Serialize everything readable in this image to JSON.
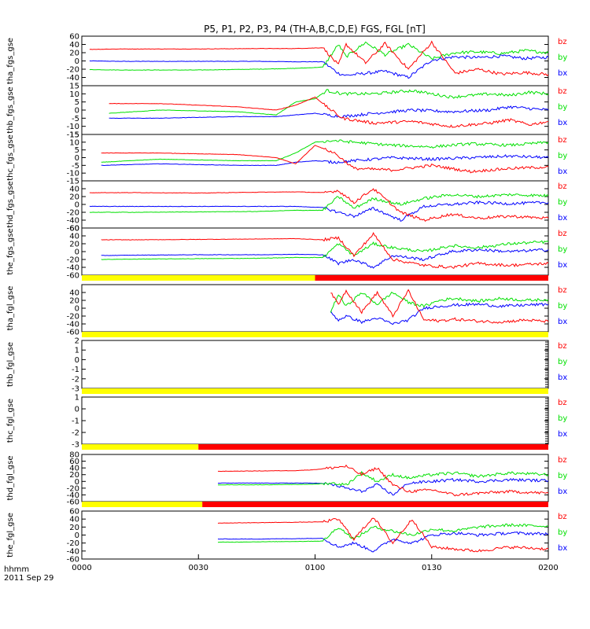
{
  "title": "P5, P1, P2, P3, P4 (TH-A,B,C,D,E) FGS, FGL [nT]",
  "colors": {
    "bx": "#0000ff",
    "by": "#00e000",
    "bz": "#ff0000",
    "flag_yellow": "#ffff00",
    "flag_red": "#ff0000",
    "axis": "#000000"
  },
  "bottom_label_line1": "hhmm",
  "bottom_label_line2": "2011 Sep 29",
  "chart_data": {
    "type": "line",
    "xlim": [
      "0000",
      "0200"
    ],
    "x_ticks": [
      "0000",
      "0030",
      "0100",
      "0130",
      "0200"
    ],
    "legend": [
      "bz",
      "by",
      "bx"
    ],
    "panels": [
      {
        "ylabel": "tha_fgs_gse",
        "ylim": [
          -60,
          60
        ],
        "ticks": [
          60,
          40,
          20,
          0,
          -20,
          -40
        ],
        "data_start_min": 2,
        "segments": [
          {
            "t": [
              2,
              10,
              30,
              45,
              55,
              62,
              66,
              68,
              73,
              78,
              84,
              90,
              96,
              102,
              108,
              114,
              120
            ],
            "bz": [
              28,
              29,
              29,
              30,
              30,
              32,
              -10,
              40,
              -5,
              42,
              -20,
              45,
              -30,
              -20,
              -32,
              -28,
              -33
            ],
            "by": [
              -21,
              -22,
              -22,
              -20,
              -18,
              -15,
              40,
              10,
              45,
              15,
              40,
              5,
              20,
              22,
              18,
              25,
              20
            ],
            "bx": [
              0,
              -1,
              -1,
              -1,
              -2,
              -2,
              -30,
              -35,
              -30,
              -25,
              -40,
              2,
              10,
              8,
              12,
              6,
              9
            ]
          }
        ]
      },
      {
        "ylabel": "thb_fgs_gse",
        "ylim": [
          -15,
          15
        ],
        "ticks": [
          15,
          10,
          5,
          0,
          -5,
          -10,
          -15
        ],
        "data_start_min": 7,
        "segments": [
          {
            "t": [
              7,
              20,
              40,
              50,
              55,
              60,
              63,
              67,
              75,
              85,
              95,
              105,
              110,
              115,
              120
            ],
            "bz": [
              4,
              4,
              2,
              0,
              3,
              8,
              2,
              -5,
              -8,
              -7,
              -10,
              -8,
              -6,
              -9,
              -7
            ],
            "by": [
              -2,
              0,
              -1,
              -3,
              5,
              7,
              12,
              10,
              10,
              12,
              8,
              10,
              9,
              11,
              10
            ],
            "bx": [
              -5,
              -5,
              -4,
              -4,
              -3,
              -2,
              -3,
              -4,
              -2,
              0,
              -1,
              0,
              2,
              1,
              0
            ]
          }
        ]
      },
      {
        "ylabel": "thc_fgs_gse",
        "ylim": [
          -15,
          15
        ],
        "ticks": [
          15,
          10,
          5,
          0,
          -5,
          -10,
          -15
        ],
        "data_start_min": 5,
        "segments": [
          {
            "t": [
              5,
              20,
              40,
              50,
              55,
              60,
              65,
              70,
              80,
              90,
              100,
              110,
              120
            ],
            "bz": [
              3,
              3,
              2,
              0,
              -4,
              8,
              3,
              -7,
              -8,
              -5,
              -9,
              -7,
              -6
            ],
            "by": [
              -3,
              -1,
              -2,
              -2,
              3,
              10,
              11,
              10,
              8,
              7,
              9,
              8,
              10
            ],
            "bx": [
              -5,
              -4,
              -5,
              -5,
              -3,
              -2,
              -3,
              -2,
              0,
              -1,
              0,
              1,
              0
            ]
          }
        ]
      },
      {
        "ylabel": "thd_fgs_gse",
        "ylim": [
          -60,
          60
        ],
        "ticks": [
          40,
          20,
          0,
          -20,
          -40,
          -60
        ],
        "data_start_min": 2,
        "segments": [
          {
            "t": [
              2,
              15,
              30,
              45,
              55,
              62,
              66,
              70,
              75,
              82,
              88,
              95,
              102,
              110,
              120
            ],
            "bz": [
              30,
              30,
              29,
              31,
              32,
              30,
              35,
              5,
              40,
              -20,
              -40,
              -25,
              -35,
              -30,
              -35
            ],
            "by": [
              -20,
              -20,
              -19,
              -18,
              -15,
              -15,
              20,
              -10,
              15,
              0,
              15,
              25,
              20,
              25,
              22
            ],
            "bx": [
              -5,
              -5,
              -5,
              -5,
              -5,
              -8,
              -20,
              -30,
              -10,
              -40,
              -5,
              0,
              5,
              2,
              5
            ]
          }
        ]
      },
      {
        "ylabel": "the_fgs_gse",
        "ylim": [
          -60,
          60
        ],
        "ticks": [
          60,
          40,
          20,
          0,
          -20,
          -40,
          -60
        ],
        "data_start_min": 5,
        "segments": [
          {
            "t": [
              5,
              15,
              30,
              45,
              55,
              62,
              66,
              70,
              75,
              80,
              88,
              95,
              102,
              110,
              120
            ],
            "bz": [
              30,
              30,
              31,
              32,
              33,
              30,
              35,
              -10,
              45,
              -20,
              -35,
              -40,
              -30,
              -35,
              -30
            ],
            "by": [
              -20,
              -19,
              -18,
              -17,
              -15,
              -15,
              20,
              -10,
              20,
              10,
              0,
              15,
              10,
              20,
              25
            ],
            "bx": [
              -10,
              -9,
              -8,
              -8,
              -7,
              -8,
              -30,
              -20,
              -40,
              -10,
              -20,
              0,
              5,
              0,
              5
            ]
          }
        ]
      },
      {
        "ylabel": "tha_fgl_gse",
        "ylim": [
          -60,
          60
        ],
        "ticks": [
          40,
          20,
          0,
          -20,
          -40,
          -60
        ],
        "data_start_min": 64,
        "segments": [
          {
            "t": [
              64,
              66,
              68,
              72,
              76,
              80,
              84,
              88,
              92,
              96,
              102,
              108,
              114,
              120
            ],
            "bz": [
              40,
              10,
              45,
              -10,
              40,
              -20,
              45,
              -30,
              -32,
              -28,
              -33,
              -35,
              -30,
              -34
            ],
            "by": [
              -10,
              35,
              5,
              40,
              10,
              40,
              15,
              5,
              20,
              25,
              18,
              25,
              20,
              22
            ],
            "bx": [
              -10,
              -30,
              -20,
              -35,
              -25,
              -40,
              -30,
              0,
              5,
              8,
              10,
              5,
              8,
              10
            ]
          }
        ]
      },
      {
        "ylabel": "thb_fgl_gse",
        "ylim": [
          -3,
          2
        ],
        "ticks": [
          2,
          1,
          0,
          -1,
          -2,
          -3
        ],
        "data_start_min": 120,
        "segments": []
      },
      {
        "ylabel": "thc_fgl_gse",
        "ylim": [
          -3,
          1
        ],
        "ticks": [
          1,
          0,
          -1,
          -2,
          -3
        ],
        "data_start_min": 120,
        "segments": []
      },
      {
        "ylabel": "thd_fgl_gse",
        "ylim": [
          -60,
          80
        ],
        "ticks": [
          80,
          60,
          40,
          20,
          0,
          -20,
          -40,
          -60
        ],
        "data_start_min": 35,
        "segments": [
          {
            "t": [
              35,
              45,
              55,
              60,
              64,
              68,
              72,
              76,
              80,
              84,
              90,
              96,
              102,
              110,
              120
            ],
            "bz": [
              30,
              31,
              32,
              35,
              40,
              45,
              20,
              40,
              -10,
              -30,
              -25,
              -40,
              -35,
              -30,
              -35
            ],
            "by": [
              -10,
              -10,
              -9,
              -8,
              -5,
              -10,
              25,
              0,
              20,
              10,
              20,
              25,
              15,
              25,
              20
            ],
            "bx": [
              -5,
              -5,
              -5,
              -5,
              -8,
              -20,
              -30,
              -10,
              -40,
              -5,
              0,
              5,
              0,
              5,
              2
            ]
          }
        ]
      },
      {
        "ylabel": "the_fgl_gse",
        "ylim": [
          -60,
          60
        ],
        "ticks": [
          60,
          40,
          20,
          0,
          -20,
          -40,
          -60
        ],
        "data_start_min": 35,
        "segments": [
          {
            "t": [
              35,
              45,
              55,
              62,
              66,
              70,
              75,
              80,
              85,
              90,
              96,
              102,
              110,
              120
            ],
            "bz": [
              30,
              31,
              32,
              33,
              40,
              -10,
              45,
              -20,
              40,
              -30,
              -35,
              -40,
              -30,
              -35
            ],
            "by": [
              -18,
              -17,
              -16,
              -15,
              20,
              -10,
              20,
              10,
              0,
              15,
              10,
              20,
              25,
              22
            ],
            "bx": [
              -10,
              -10,
              -9,
              -8,
              -30,
              -20,
              -40,
              -10,
              -20,
              0,
              5,
              0,
              5,
              3
            ]
          }
        ]
      }
    ],
    "flag_bars": [
      {
        "after_panel": 4,
        "segments": [
          {
            "color": "yellow",
            "from": 0,
            "to": 60
          },
          {
            "color": "red",
            "from": 60,
            "to": 120
          }
        ]
      },
      {
        "after_panel": 5,
        "segments": [
          {
            "color": "yellow",
            "from": 0,
            "to": 120
          }
        ]
      },
      {
        "after_panel": 6,
        "segments": [
          {
            "color": "yellow",
            "from": 0,
            "to": 120
          }
        ]
      },
      {
        "after_panel": 7,
        "segments": [
          {
            "color": "yellow",
            "from": 0,
            "to": 30
          },
          {
            "color": "red",
            "from": 30,
            "to": 120
          }
        ]
      },
      {
        "after_panel": 8,
        "segments": [
          {
            "color": "yellow",
            "from": 0,
            "to": 31
          },
          {
            "color": "red",
            "from": 31,
            "to": 120
          }
        ]
      }
    ]
  }
}
